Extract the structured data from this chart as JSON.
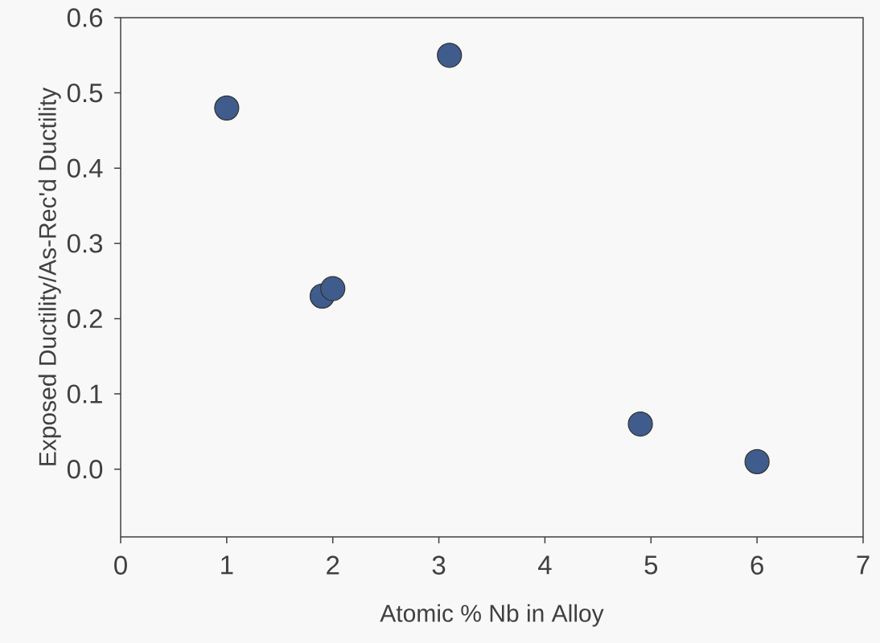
{
  "chart_data": {
    "type": "scatter",
    "xlabel": "Atomic % Nb in Alloy",
    "ylabel": "Exposed Ductility/As-Rec'd Ductility",
    "x": [
      1.0,
      1.9,
      2.0,
      3.1,
      4.9,
      6.0
    ],
    "series": [
      {
        "color": "#3f5c8c",
        "values": [
          0.48,
          0.23,
          0.24,
          0.55,
          0.06,
          0.01
        ]
      }
    ],
    "xlim": [
      0,
      7
    ],
    "xticks": [
      0,
      1,
      2,
      3,
      4,
      5,
      6,
      7
    ],
    "ylim": [
      -0.09,
      0.6
    ],
    "yticks": [
      {
        "value": 0,
        "label": "0.0"
      },
      0.1,
      0.2,
      0.3,
      0.4,
      0.5,
      0.6
    ],
    "grid": false
  }
}
